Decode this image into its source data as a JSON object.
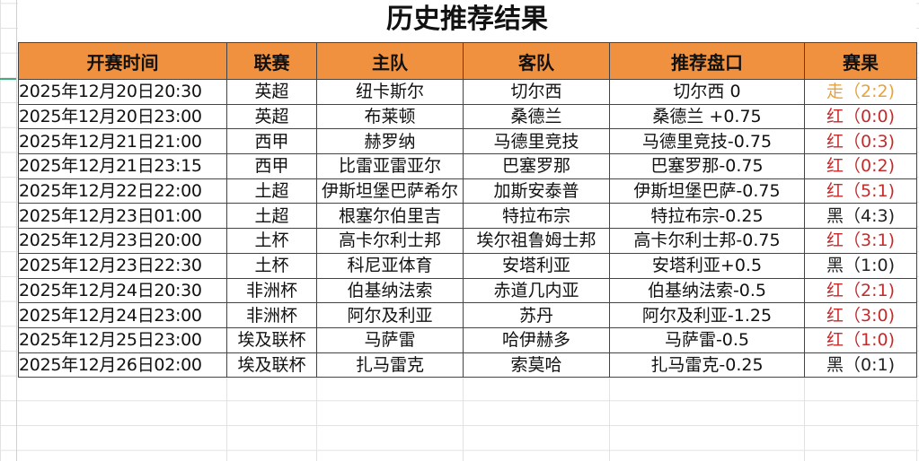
{
  "title": "历史推荐结果",
  "columns": [
    "开赛时间",
    "联赛",
    "主队",
    "客队",
    "推荐盘口",
    "赛果"
  ],
  "rows": [
    [
      "2025年12月20日20:30",
      "英超",
      "纽卡斯尔",
      "切尔西",
      "切尔西 0",
      "走（2:2)",
      "push"
    ],
    [
      "2025年12月20日23:00",
      "英超",
      "布莱顿",
      "桑德兰",
      "桑德兰 +0.75",
      "红（0:0)",
      "win"
    ],
    [
      "2025年12月21日21:00",
      "西甲",
      "赫罗纳",
      "马德里竞技",
      "马德里竞技-0.75",
      "红（0:3)",
      "win"
    ],
    [
      "2025年12月21日23:15",
      "西甲",
      "比雷亚雷亚尔",
      "巴塞罗那",
      "巴塞罗那-0.75",
      "红（0:2)",
      "win"
    ],
    [
      "2025年12月22日22:00",
      "土超",
      "伊斯坦堡巴萨希尔",
      "加斯安泰普",
      "伊斯坦堡巴萨-0.75",
      "红（5:1)",
      "win"
    ],
    [
      "2025年12月23日01:00",
      "土超",
      "根塞尔伯里吉",
      "特拉布宗",
      "特拉布宗-0.25",
      "黑（4:3)",
      "lose"
    ],
    [
      "2025年12月23日20:00",
      "土杯",
      "高卡尔利士邦",
      "埃尔祖鲁姆士邦",
      "高卡尔利士邦-0.75",
      "红（3:1)",
      "win"
    ],
    [
      "2025年12月23日22:30",
      "土杯",
      "科尼亚体育",
      "安塔利亚",
      "安塔利亚+0.5",
      "黑（1:0)",
      "lose"
    ],
    [
      "2025年12月24日20:30",
      "非洲杯",
      "伯基纳法索",
      "赤道几内亚",
      "伯基纳法索-0.5",
      "红（2:1)",
      "win"
    ],
    [
      "2025年12月24日23:00",
      "非洲杯",
      "阿尔及利亚",
      "苏丹",
      "阿尔及利亚-1.25",
      "红（3:0)",
      "win"
    ],
    [
      "2025年12月25日23:00",
      "埃及联杯",
      "马萨雷",
      "哈伊赫多",
      "马萨雷-0.5",
      "红（1:0)",
      "win"
    ],
    [
      "2025年12月26日02:00",
      "埃及联杯",
      "扎马雷克",
      "索莫哈",
      "扎马雷克-0.25",
      "黑（0:1)",
      "lose"
    ]
  ],
  "colors": {
    "header": "#f0913f",
    "push": "#e8a23a",
    "win": "#c42b2b",
    "lose": "#222222"
  }
}
